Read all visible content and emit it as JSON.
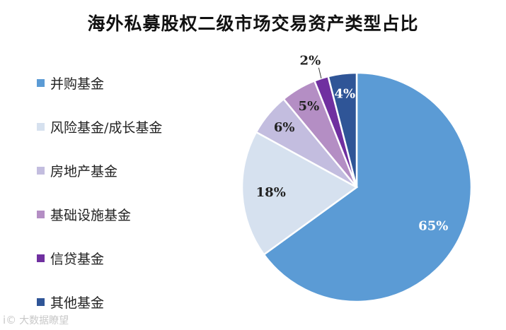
{
  "chart_data": {
    "type": "pie",
    "title": "海外私募股权二级市场交易资产类型占比",
    "categories": [
      "并购基金",
      "风险基金/成长基金",
      "房地产基金",
      "基础设施基金",
      "信贷基金",
      "其他基金"
    ],
    "values": [
      65,
      18,
      6,
      5,
      2,
      4
    ],
    "labels": [
      "65%",
      "18%",
      "6%",
      "5%",
      "2%",
      "4%"
    ],
    "colors": [
      "#5b9bd5",
      "#d6e1ef",
      "#c3bddf",
      "#b48ec4",
      "#7030a0",
      "#2f5597"
    ],
    "label_colors": [
      "#ffffff",
      "#222222",
      "#222222",
      "#222222",
      "#222222",
      "#ffffff"
    ],
    "start_angle_deg": 0,
    "direction": "clockwise",
    "legend_position": "left"
  },
  "watermark": {
    "mark": "i©",
    "text": "大数据瞭望"
  }
}
